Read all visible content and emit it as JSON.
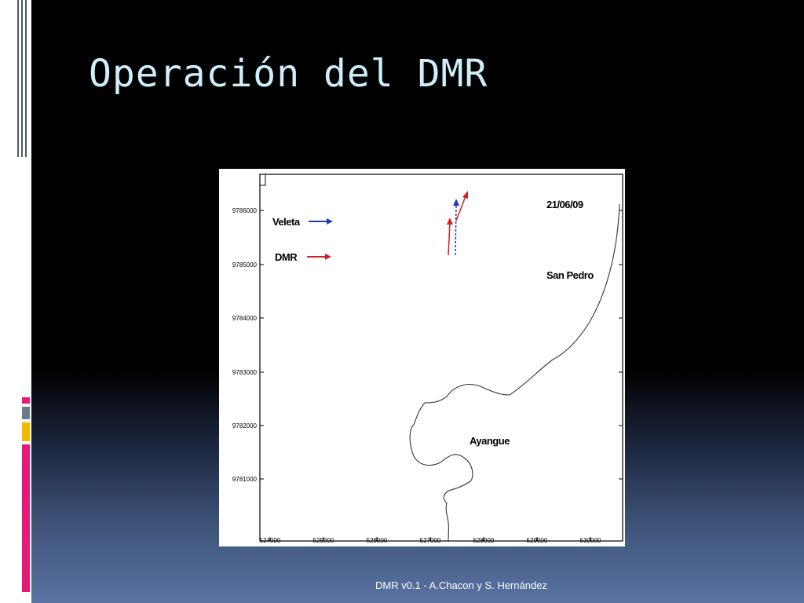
{
  "slide": {
    "title": "Operación del DMR",
    "footer": "DMR v0.1 - A.Chacon y S. Hernández"
  },
  "map": {
    "date_label": "21/06/09",
    "legend": [
      {
        "label": "Veleta",
        "color": "#1f3fb4"
      },
      {
        "label": "DMR",
        "color": "#d32020"
      }
    ],
    "places": {
      "san_pedro": "San Pedro",
      "ayangue": "Ayangue"
    },
    "y_ticks": [
      "9786000",
      "9785000",
      "9784000",
      "9783000",
      "9782000",
      "9781000"
    ],
    "x_ticks": [
      "524000",
      "525000",
      "526000",
      "527000",
      "528000",
      "529000",
      "530000"
    ]
  },
  "colors": {
    "accent_pink": "#e8187b",
    "accent_yellow": "#f5b800",
    "accent_gray": "#6b7a8c",
    "title_color": "#cfeefb"
  }
}
